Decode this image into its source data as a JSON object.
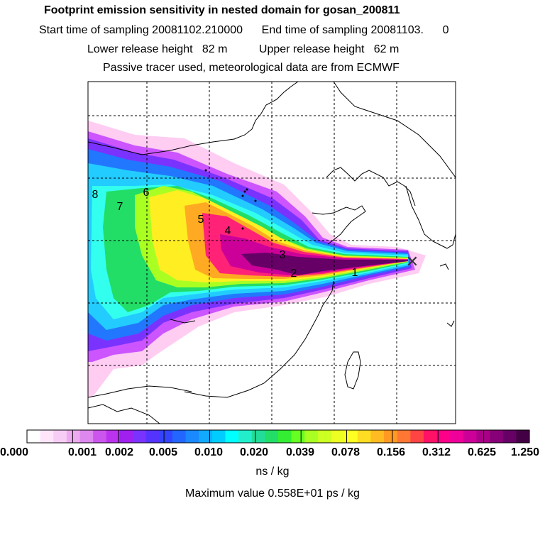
{
  "header": {
    "title": "Footprint emission sensitivity in nested domain for gosan_200811",
    "sampling_line": "Start time of sampling 20081102.210000      End time of sampling 20081103.      0",
    "release_line": "Lower release height   82 m          Upper release height   62 m",
    "tracer_line": "Passive tracer used, meteorological data are from ECMWF"
  },
  "map": {
    "plume_colors": [
      "#ffccf2",
      "#cc55ff",
      "#7a33ff",
      "#2277ff",
      "#22ccff",
      "#33ffee",
      "#22dd66",
      "#aaff22",
      "#ffee22",
      "#ffaa22",
      "#ff2277",
      "#cc0099",
      "#660066"
    ],
    "markers": [
      "8",
      "7",
      "6",
      "5",
      "4",
      "3",
      "2",
      "1"
    ],
    "receptor_symbol": "✕"
  },
  "colorbar": {
    "colors": [
      "#ffffff",
      "#ffe5fa",
      "#f7ccf5",
      "#eeaaf0",
      "#dd88ee",
      "#cc55ee",
      "#bb33ee",
      "#a020f0",
      "#7a33ff",
      "#5533ff",
      "#3344ff",
      "#2266ff",
      "#1a88ff",
      "#11aaff",
      "#00ccff",
      "#00ffff",
      "#22eecc",
      "#22dd99",
      "#22dd66",
      "#33ee33",
      "#66ff22",
      "#aaff22",
      "#ccff22",
      "#eeff22",
      "#ffff22",
      "#ffdd22",
      "#ffbb22",
      "#ff9922",
      "#ff7733",
      "#ff4444",
      "#ff1166",
      "#ff0088",
      "#ee0099",
      "#cc0099",
      "#aa0088",
      "#880077",
      "#660066",
      "#440044"
    ],
    "labels": [
      "0.000",
      "0.001",
      "0.002",
      "0.005",
      "0.010",
      "0.020",
      "0.039",
      "0.078",
      "0.156",
      "0.312",
      "0.625",
      "1.250"
    ],
    "units": "ns / kg",
    "max_value": "Maximum value  0.558E+01 ps / kg"
  }
}
